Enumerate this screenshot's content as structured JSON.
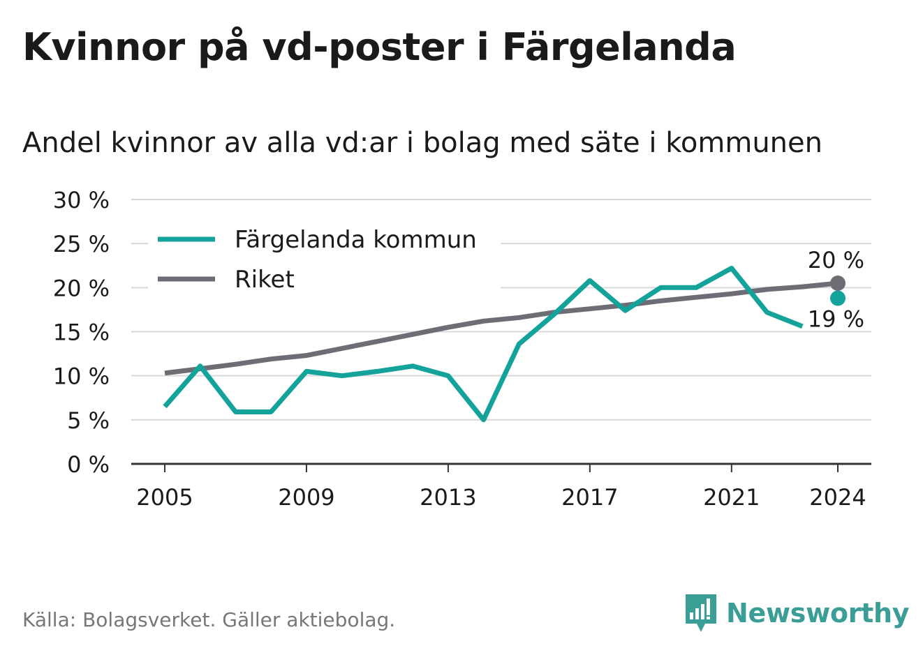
{
  "title": "Kvinnor på vd-poster i Färgelanda",
  "subtitle": "Andel kvinnor av alla vd:ar i bolag med säte i kommunen",
  "source": "Källa: Bolagsverket. Gäller aktiebolag.",
  "brand": {
    "name": "Newsworthy",
    "color": "#3a9e97"
  },
  "chart_data": {
    "type": "line",
    "ylim": [
      0,
      30
    ],
    "xlim": [
      2005,
      2024
    ],
    "y_ticks": [
      {
        "value": 0,
        "label": "0 %"
      },
      {
        "value": 5,
        "label": "5 %"
      },
      {
        "value": 10,
        "label": "10 %"
      },
      {
        "value": 15,
        "label": "15 %"
      },
      {
        "value": 20,
        "label": "20 %"
      },
      {
        "value": 25,
        "label": "25 %"
      },
      {
        "value": 30,
        "label": "30 %"
      }
    ],
    "x_ticks": [
      {
        "value": 2005,
        "label": "2005"
      },
      {
        "value": 2009,
        "label": "2009"
      },
      {
        "value": 2013,
        "label": "2013"
      },
      {
        "value": 2017,
        "label": "2017"
      },
      {
        "value": 2021,
        "label": "2021"
      },
      {
        "value": 2024,
        "label": "2024"
      }
    ],
    "grid": true,
    "legend_position": "top-left",
    "series": [
      {
        "name": "Färgelanda kommun",
        "color": "#14a39a",
        "x": [
          2005,
          2006,
          2007,
          2008,
          2009,
          2010,
          2011,
          2012,
          2013,
          2014,
          2015,
          2016,
          2017,
          2018,
          2019,
          2020,
          2021,
          2022,
          2023,
          2024
        ],
        "values": [
          6.5,
          11.1,
          5.9,
          5.9,
          10.5,
          10.0,
          10.5,
          11.1,
          10.0,
          5.0,
          13.6,
          17.0,
          20.8,
          17.4,
          20.0,
          20.0,
          22.2,
          17.2,
          15.6,
          18.8
        ],
        "end_label": "19 %"
      },
      {
        "name": "Riket",
        "color": "#6d6d75",
        "x": [
          2005,
          2006,
          2007,
          2008,
          2009,
          2010,
          2011,
          2012,
          2013,
          2014,
          2015,
          2016,
          2017,
          2018,
          2019,
          2020,
          2021,
          2022,
          2023,
          2024
        ],
        "values": [
          10.3,
          10.8,
          11.3,
          11.9,
          12.3,
          13.1,
          13.9,
          14.7,
          15.5,
          16.2,
          16.6,
          17.2,
          17.6,
          18.0,
          18.5,
          18.9,
          19.3,
          19.8,
          20.1,
          20.5
        ],
        "end_label": "20 %"
      }
    ]
  }
}
